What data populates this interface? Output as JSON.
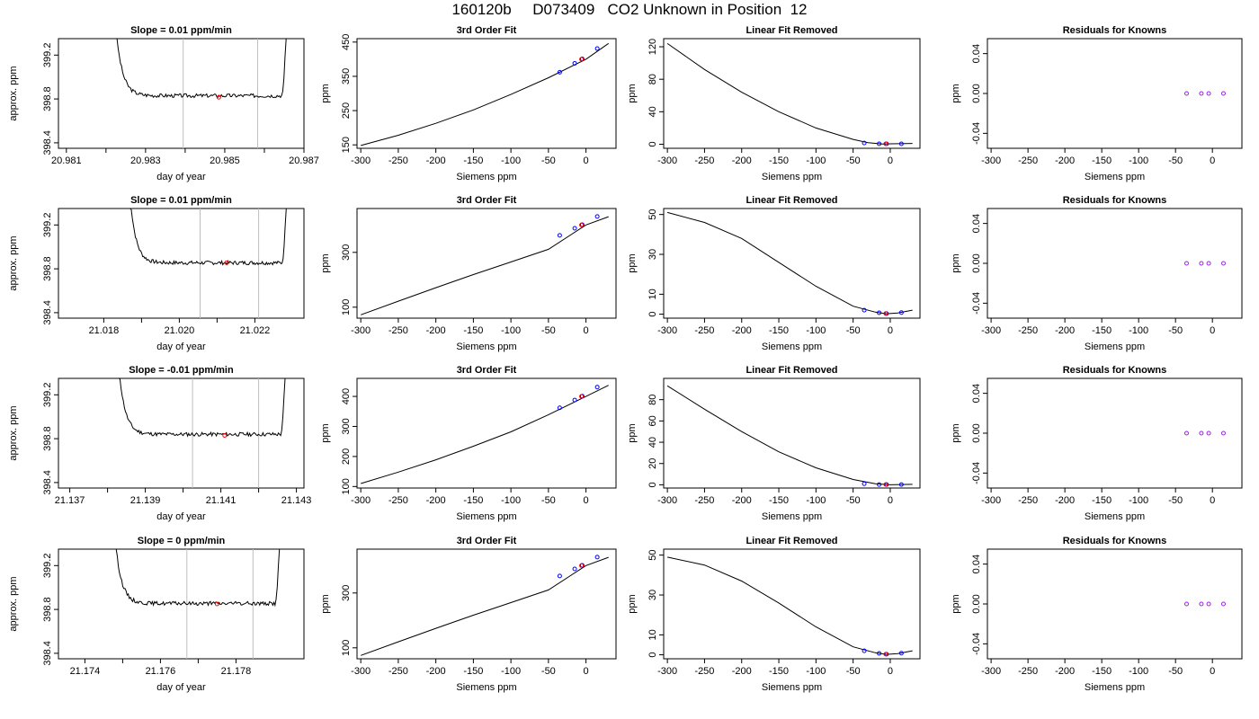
{
  "title": "160120b     D073409   CO2 Unknown in Position  12",
  "colors": {
    "line": "#000000",
    "known": "#0000ff",
    "unknown": "#ff0000",
    "residual": "#a020f0",
    "marker": "#bebebe"
  },
  "chart_data": [
    {
      "type": "line",
      "title": "Slope =  0.01  ppm/min",
      "xlabel": "day of year",
      "ylabel": "approx. ppm",
      "xlim": [
        20.9808,
        20.987
      ],
      "ylim": [
        398.35,
        399.35
      ],
      "xticks": [
        "20.981",
        "20.983",
        "20.985",
        "20.987"
      ],
      "xtick_values": [
        20.981,
        20.983,
        20.985,
        20.987
      ],
      "yticks": [
        "398.4",
        "398.8",
        "399.2"
      ],
      "ytick_values": [
        398.4,
        398.8,
        399.2
      ],
      "markers": [
        20.98395,
        20.98583
      ],
      "point": {
        "x": 20.98485,
        "y": 398.815
      },
      "flat_level": 398.83,
      "start": 20.98225,
      "end": 20.98655
    },
    {
      "type": "line",
      "title": "3rd Order Fit",
      "xlabel": "Siemens ppm",
      "ylabel": "ppm",
      "xlim": [
        -305,
        40
      ],
      "ylim": [
        140,
        460
      ],
      "xticks": [
        "-300",
        "-250",
        "-200",
        "-150",
        "-100",
        "-50",
        "0"
      ],
      "xtick_values": [
        -300,
        -250,
        -200,
        -150,
        -100,
        -50,
        0
      ],
      "yticks": [
        "150",
        "250",
        "350",
        "450"
      ],
      "ytick_values": [
        150,
        250,
        350,
        450
      ],
      "curve": [
        [
          -300,
          148
        ],
        [
          -250,
          178
        ],
        [
          -200,
          213
        ],
        [
          -150,
          252
        ],
        [
          -100,
          297
        ],
        [
          -50,
          346
        ],
        [
          0,
          400
        ],
        [
          30,
          446
        ]
      ],
      "knowns": [
        [
          -35,
          362
        ],
        [
          -15,
          388
        ],
        [
          -5,
          401
        ],
        [
          15,
          431
        ]
      ],
      "unknown": [
        [
          -6,
          400
        ]
      ]
    },
    {
      "type": "line",
      "title": "Linear Fit Removed",
      "xlabel": "Siemens ppm",
      "ylabel": "ppm",
      "xlim": [
        -305,
        40
      ],
      "ylim": [
        -5,
        130
      ],
      "xticks": [
        "-300",
        "-250",
        "-200",
        "-150",
        "-100",
        "-50",
        "0"
      ],
      "xtick_values": [
        -300,
        -250,
        -200,
        -150,
        -100,
        -50,
        0
      ],
      "yticks": [
        "0",
        "40",
        "80",
        "120"
      ],
      "ytick_values": [
        0,
        40,
        80,
        120
      ],
      "curve": [
        [
          -300,
          124
        ],
        [
          -250,
          92
        ],
        [
          -200,
          64
        ],
        [
          -150,
          40
        ],
        [
          -100,
          20
        ],
        [
          -50,
          6
        ],
        [
          -30,
          2
        ],
        [
          -10,
          0.3
        ],
        [
          0,
          0.5
        ],
        [
          30,
          1
        ]
      ],
      "knowns": [
        [
          -35,
          1.5
        ],
        [
          -15,
          0.5
        ],
        [
          -5,
          0.5
        ],
        [
          15,
          0.5
        ]
      ],
      "unknown": [
        [
          -6,
          0.5
        ]
      ]
    },
    {
      "type": "scatter",
      "title": "Residuals for Knowns",
      "xlabel": "Siemens ppm",
      "ylabel": "ppm",
      "xlim": [
        -305,
        40
      ],
      "ylim": [
        -0.055,
        0.055
      ],
      "xticks": [
        "-300",
        "-250",
        "-200",
        "-150",
        "-100",
        "-50",
        "0"
      ],
      "xtick_values": [
        -300,
        -250,
        -200,
        -150,
        -100,
        -50,
        0
      ],
      "yticks": [
        "-0.04",
        "0.00",
        "0.04"
      ],
      "ytick_values": [
        -0.04,
        0,
        0.04
      ],
      "points": [
        [
          -35,
          0
        ],
        [
          -15,
          0
        ],
        [
          -5,
          0
        ],
        [
          15,
          0
        ]
      ]
    },
    {
      "type": "line",
      "title": "Slope =  0.01  ppm/min",
      "xlabel": "day of year",
      "ylabel": "approx. ppm",
      "xlim": [
        21.0168,
        21.0233
      ],
      "ylim": [
        398.35,
        399.35
      ],
      "xticks": [
        "21.018",
        "21.020",
        "21.022"
      ],
      "xtick_values": [
        21.018,
        21.02,
        21.022
      ],
      "yticks": [
        "398.4",
        "398.8",
        "399.2"
      ],
      "ytick_values": [
        398.4,
        398.8,
        399.2
      ],
      "markers": [
        21.02055,
        21.0221
      ],
      "point": {
        "x": 21.02125,
        "y": 398.855
      },
      "flat_level": 398.855,
      "start": 21.0187,
      "end": 21.02283
    },
    {
      "type": "line",
      "title": "3rd Order Fit",
      "xlabel": "Siemens ppm",
      "ylabel": "ppm",
      "xlim": [
        -305,
        40
      ],
      "ylim": [
        60,
        460
      ],
      "xticks": [
        "-300",
        "-250",
        "-200",
        "-150",
        "-100",
        "-50",
        "0"
      ],
      "xtick_values": [
        -300,
        -250,
        -200,
        -150,
        -100,
        -50,
        0
      ],
      "yticks": [
        "100",
        "300"
      ],
      "ytick_values": [
        100,
        300
      ],
      "curve": [
        [
          -300,
          72
        ],
        [
          -250,
          122
        ],
        [
          -200,
          171
        ],
        [
          -150,
          219
        ],
        [
          -100,
          265
        ],
        [
          -50,
          311
        ],
        [
          0,
          400
        ],
        [
          30,
          430
        ]
      ],
      "knowns": [
        [
          -35,
          362
        ],
        [
          -15,
          388
        ],
        [
          -5,
          401
        ],
        [
          15,
          431
        ]
      ],
      "unknown": [
        [
          -6,
          400
        ]
      ]
    },
    {
      "type": "line",
      "title": "Linear Fit Removed",
      "xlabel": "Siemens ppm",
      "ylabel": "ppm",
      "xlim": [
        -305,
        40
      ],
      "ylim": [
        -2,
        53
      ],
      "xticks": [
        "-300",
        "-250",
        "-200",
        "-150",
        "-100",
        "-50",
        "0"
      ],
      "xtick_values": [
        -300,
        -250,
        -200,
        -150,
        -100,
        -50,
        0
      ],
      "yticks": [
        "0",
        "10",
        "30",
        "50"
      ],
      "ytick_values": [
        0,
        10,
        30,
        50
      ],
      "curve": [
        [
          -300,
          51
        ],
        [
          -250,
          46
        ],
        [
          -200,
          38
        ],
        [
          -150,
          26
        ],
        [
          -100,
          14
        ],
        [
          -50,
          4
        ],
        [
          -20,
          1
        ],
        [
          -5,
          0.2
        ],
        [
          10,
          0.6
        ],
        [
          30,
          2
        ]
      ],
      "knowns": [
        [
          -35,
          2
        ],
        [
          -15,
          0.7
        ],
        [
          -5,
          0.3
        ],
        [
          15,
          0.8
        ]
      ],
      "unknown": [
        [
          -6,
          0.3
        ]
      ]
    },
    {
      "type": "scatter",
      "title": "Residuals for Knowns",
      "xlabel": "Siemens ppm",
      "ylabel": "ppm",
      "xlim": [
        -305,
        40
      ],
      "ylim": [
        -0.055,
        0.055
      ],
      "xticks": [
        "-300",
        "-250",
        "-200",
        "-150",
        "-100",
        "-50",
        "0"
      ],
      "xtick_values": [
        -300,
        -250,
        -200,
        -150,
        -100,
        -50,
        0
      ],
      "yticks": [
        "-0.04",
        "0.00",
        "0.04"
      ],
      "ytick_values": [
        -0.04,
        0,
        0.04
      ],
      "points": [
        [
          -35,
          0
        ],
        [
          -15,
          0
        ],
        [
          -5,
          0
        ],
        [
          15,
          0
        ]
      ]
    },
    {
      "type": "line",
      "title": "Slope =  -0.01  ppm/min",
      "xlabel": "day of year",
      "ylabel": "approx. ppm",
      "xlim": [
        21.1367,
        21.1432
      ],
      "ylim": [
        398.35,
        399.35
      ],
      "xticks": [
        "21.137",
        "21.139",
        "21.141",
        "21.143"
      ],
      "xtick_values": [
        21.137,
        21.139,
        21.141,
        21.143
      ],
      "yticks": [
        "398.4",
        "398.8",
        "399.2"
      ],
      "ytick_values": [
        398.4,
        398.8,
        399.2
      ],
      "markers": [
        21.14025,
        21.142
      ],
      "point": {
        "x": 21.1411,
        "y": 398.83
      },
      "flat_level": 398.84,
      "start": 21.1383,
      "end": 21.1427
    },
    {
      "type": "line",
      "title": "3rd Order Fit",
      "xlabel": "Siemens ppm",
      "ylabel": "ppm",
      "xlim": [
        -305,
        40
      ],
      "ylim": [
        95,
        460
      ],
      "xticks": [
        "-300",
        "-250",
        "-200",
        "-150",
        "-100",
        "-50",
        "0"
      ],
      "xtick_values": [
        -300,
        -250,
        -200,
        -150,
        -100,
        -50,
        0
      ],
      "yticks": [
        "100",
        "200",
        "300",
        "400"
      ],
      "ytick_values": [
        100,
        200,
        300,
        400
      ],
      "curve": [
        [
          -300,
          110
        ],
        [
          -250,
          148
        ],
        [
          -200,
          189
        ],
        [
          -150,
          234
        ],
        [
          -100,
          282
        ],
        [
          -50,
          339
        ],
        [
          0,
          400
        ],
        [
          30,
          437
        ]
      ],
      "knowns": [
        [
          -35,
          362
        ],
        [
          -15,
          388
        ],
        [
          -5,
          401
        ],
        [
          15,
          431
        ]
      ],
      "unknown": [
        [
          -6,
          400
        ]
      ]
    },
    {
      "type": "line",
      "title": "Linear Fit Removed",
      "xlabel": "Siemens ppm",
      "ylabel": "ppm",
      "xlim": [
        -305,
        40
      ],
      "ylim": [
        -3,
        100
      ],
      "xticks": [
        "-300",
        "-250",
        "-200",
        "-150",
        "-100",
        "-50",
        "0"
      ],
      "xtick_values": [
        -300,
        -250,
        -200,
        -150,
        -100,
        -50,
        0
      ],
      "yticks": [
        "0",
        "20",
        "40",
        "60",
        "80"
      ],
      "ytick_values": [
        0,
        20,
        40,
        60,
        80
      ],
      "curve": [
        [
          -300,
          93
        ],
        [
          -250,
          71
        ],
        [
          -200,
          50
        ],
        [
          -150,
          31
        ],
        [
          -100,
          16
        ],
        [
          -50,
          5
        ],
        [
          -20,
          1
        ],
        [
          0,
          0
        ],
        [
          30,
          0.5
        ]
      ],
      "knowns": [
        [
          -35,
          1
        ],
        [
          -15,
          0.3
        ],
        [
          -5,
          0.3
        ],
        [
          15,
          0.3
        ]
      ],
      "unknown": [
        [
          -6,
          0.3
        ]
      ]
    },
    {
      "type": "scatter",
      "title": "Residuals for Knowns",
      "xlabel": "Siemens ppm",
      "ylabel": "ppm",
      "xlim": [
        -305,
        40
      ],
      "ylim": [
        -0.055,
        0.055
      ],
      "xticks": [
        "-300",
        "-250",
        "-200",
        "-150",
        "-100",
        "-50",
        "0"
      ],
      "xtick_values": [
        -300,
        -250,
        -200,
        -150,
        -100,
        -50,
        0
      ],
      "yticks": [
        "-0.04",
        "0.00",
        "0.04"
      ],
      "ytick_values": [
        -0.04,
        0,
        0.04
      ],
      "points": [
        [
          -35,
          0
        ],
        [
          -15,
          0
        ],
        [
          -5,
          0
        ],
        [
          15,
          0
        ]
      ]
    },
    {
      "type": "line",
      "title": "Slope =  0  ppm/min",
      "xlabel": "day of year",
      "ylabel": "approx. ppm",
      "xlim": [
        21.1733,
        21.1798
      ],
      "ylim": [
        398.35,
        399.35
      ],
      "xticks": [
        "21.174",
        "21.176",
        "21.178"
      ],
      "xtick_values": [
        21.174,
        21.176,
        21.178
      ],
      "yticks": [
        "398.4",
        "398.8",
        "399.2"
      ],
      "ytick_values": [
        398.4,
        398.8,
        399.2
      ],
      "markers": [
        21.1767,
        21.17845
      ],
      "point": {
        "x": 21.1775,
        "y": 398.85
      },
      "flat_level": 398.855,
      "start": 21.1748,
      "end": 21.17915
    },
    {
      "type": "line",
      "title": "3rd Order Fit",
      "xlabel": "Siemens ppm",
      "ylabel": "ppm",
      "xlim": [
        -305,
        40
      ],
      "ylim": [
        60,
        460
      ],
      "xticks": [
        "-300",
        "-250",
        "-200",
        "-150",
        "-100",
        "-50",
        "0"
      ],
      "xtick_values": [
        -300,
        -250,
        -200,
        -150,
        -100,
        -50,
        0
      ],
      "yticks": [
        "100",
        "300"
      ],
      "ytick_values": [
        100,
        300
      ],
      "curve": [
        [
          -300,
          72
        ],
        [
          -250,
          122
        ],
        [
          -200,
          171
        ],
        [
          -150,
          219
        ],
        [
          -100,
          265
        ],
        [
          -50,
          311
        ],
        [
          0,
          400
        ],
        [
          30,
          430
        ]
      ],
      "knowns": [
        [
          -35,
          362
        ],
        [
          -15,
          388
        ],
        [
          -5,
          401
        ],
        [
          15,
          431
        ]
      ],
      "unknown": [
        [
          -6,
          400
        ]
      ]
    },
    {
      "type": "line",
      "title": "Linear Fit Removed",
      "xlabel": "Siemens ppm",
      "ylabel": "ppm",
      "xlim": [
        -305,
        40
      ],
      "ylim": [
        -2,
        53
      ],
      "xticks": [
        "-300",
        "-250",
        "-200",
        "-150",
        "-100",
        "-50",
        "0"
      ],
      "xtick_values": [
        -300,
        -250,
        -200,
        -150,
        -100,
        -50,
        0
      ],
      "yticks": [
        "0",
        "10",
        "30",
        "50"
      ],
      "ytick_values": [
        0,
        10,
        30,
        50
      ],
      "curve": [
        [
          -300,
          49
        ],
        [
          -250,
          45
        ],
        [
          -200,
          37
        ],
        [
          -150,
          26
        ],
        [
          -100,
          14
        ],
        [
          -50,
          4
        ],
        [
          -20,
          1
        ],
        [
          -5,
          0.2
        ],
        [
          10,
          0.6
        ],
        [
          30,
          2
        ]
      ],
      "knowns": [
        [
          -35,
          2
        ],
        [
          -15,
          0.7
        ],
        [
          -5,
          0.3
        ],
        [
          15,
          0.8
        ]
      ],
      "unknown": [
        [
          -6,
          0.3
        ]
      ]
    },
    {
      "type": "scatter",
      "title": "Residuals for Knowns",
      "xlabel": "Siemens ppm",
      "ylabel": "ppm",
      "xlim": [
        -305,
        40
      ],
      "ylim": [
        -0.055,
        0.055
      ],
      "xticks": [
        "-300",
        "-250",
        "-200",
        "-150",
        "-100",
        "-50",
        "0"
      ],
      "xtick_values": [
        -300,
        -250,
        -200,
        -150,
        -100,
        -50,
        0
      ],
      "yticks": [
        "-0.04",
        "0.00",
        "0.04"
      ],
      "ytick_values": [
        -0.04,
        0,
        0.04
      ],
      "points": [
        [
          -35,
          0
        ],
        [
          -15,
          0
        ],
        [
          -5,
          0
        ],
        [
          15,
          0
        ]
      ]
    }
  ]
}
